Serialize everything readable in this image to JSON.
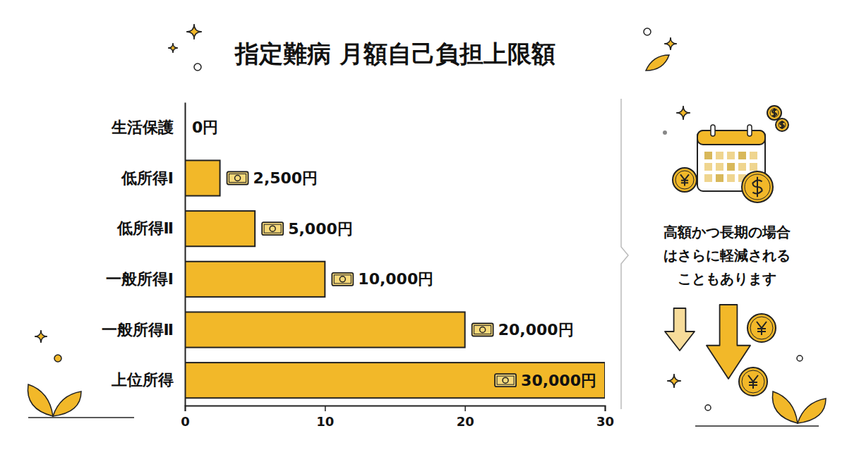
{
  "chart_data": {
    "type": "bar",
    "orientation": "horizontal",
    "title": "指定難病 月額自己負担上限額",
    "categories": [
      "生活保護",
      "低所得Ⅰ",
      "低所得Ⅱ",
      "一般所得Ⅰ",
      "一般所得Ⅱ",
      "上位所得"
    ],
    "values": [
      0,
      2.5,
      5,
      10,
      20,
      30
    ],
    "value_labels": [
      "0円",
      "2,500円",
      "5,000円",
      "10,000円",
      "20,000円",
      "30,000円"
    ],
    "data_labels": true,
    "color": "#f2b829",
    "xlim": [
      0,
      30
    ],
    "xticks": [
      0,
      10,
      20,
      30
    ],
    "grid": false,
    "annotation": "高額かつ長期の場合はさらに軽減されることもあります"
  }
}
